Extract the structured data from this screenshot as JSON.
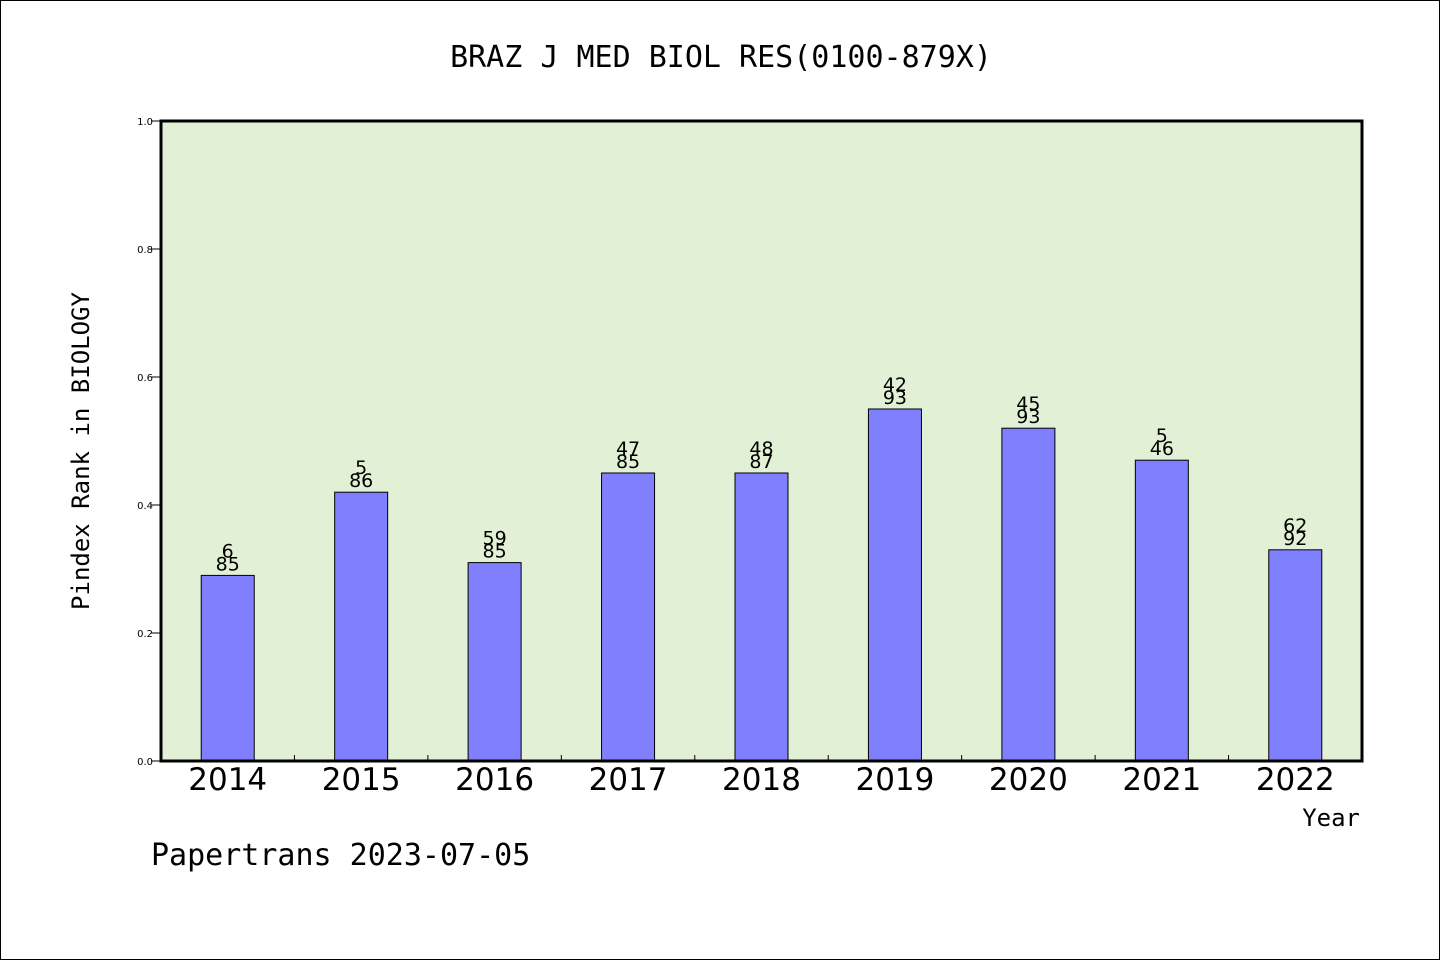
{
  "chart_data": {
    "type": "bar",
    "title": "BRAZ J MED BIOL RES(0100-879X)",
    "ylabel": "Pindex Rank in BIOLOGY",
    "xlabel": "Year",
    "footer": "Papertrans 2023-07-05",
    "categories": [
      "2014",
      "2015",
      "2016",
      "2017",
      "2018",
      "2019",
      "2020",
      "2021",
      "2022"
    ],
    "values": [
      0.29,
      0.42,
      0.31,
      0.45,
      0.45,
      0.55,
      0.52,
      0.47,
      0.33
    ],
    "bar_labels": [
      [
        "6",
        "85"
      ],
      [
        "5",
        "86"
      ],
      [
        "59",
        "85"
      ],
      [
        "47",
        "85"
      ],
      [
        "48",
        "87"
      ],
      [
        "42",
        "93"
      ],
      [
        "45",
        "93"
      ],
      [
        "5",
        "46"
      ],
      [
        "62",
        "92"
      ]
    ],
    "ylim": [
      0,
      1.0
    ],
    "yticks": [
      "0.0",
      "0.2",
      "0.4",
      "0.6",
      "0.8",
      "1.0"
    ],
    "grid": false,
    "colors": {
      "bar": "#8080ff",
      "plot_background": "#e2f0d6",
      "axis": "#000000"
    }
  }
}
